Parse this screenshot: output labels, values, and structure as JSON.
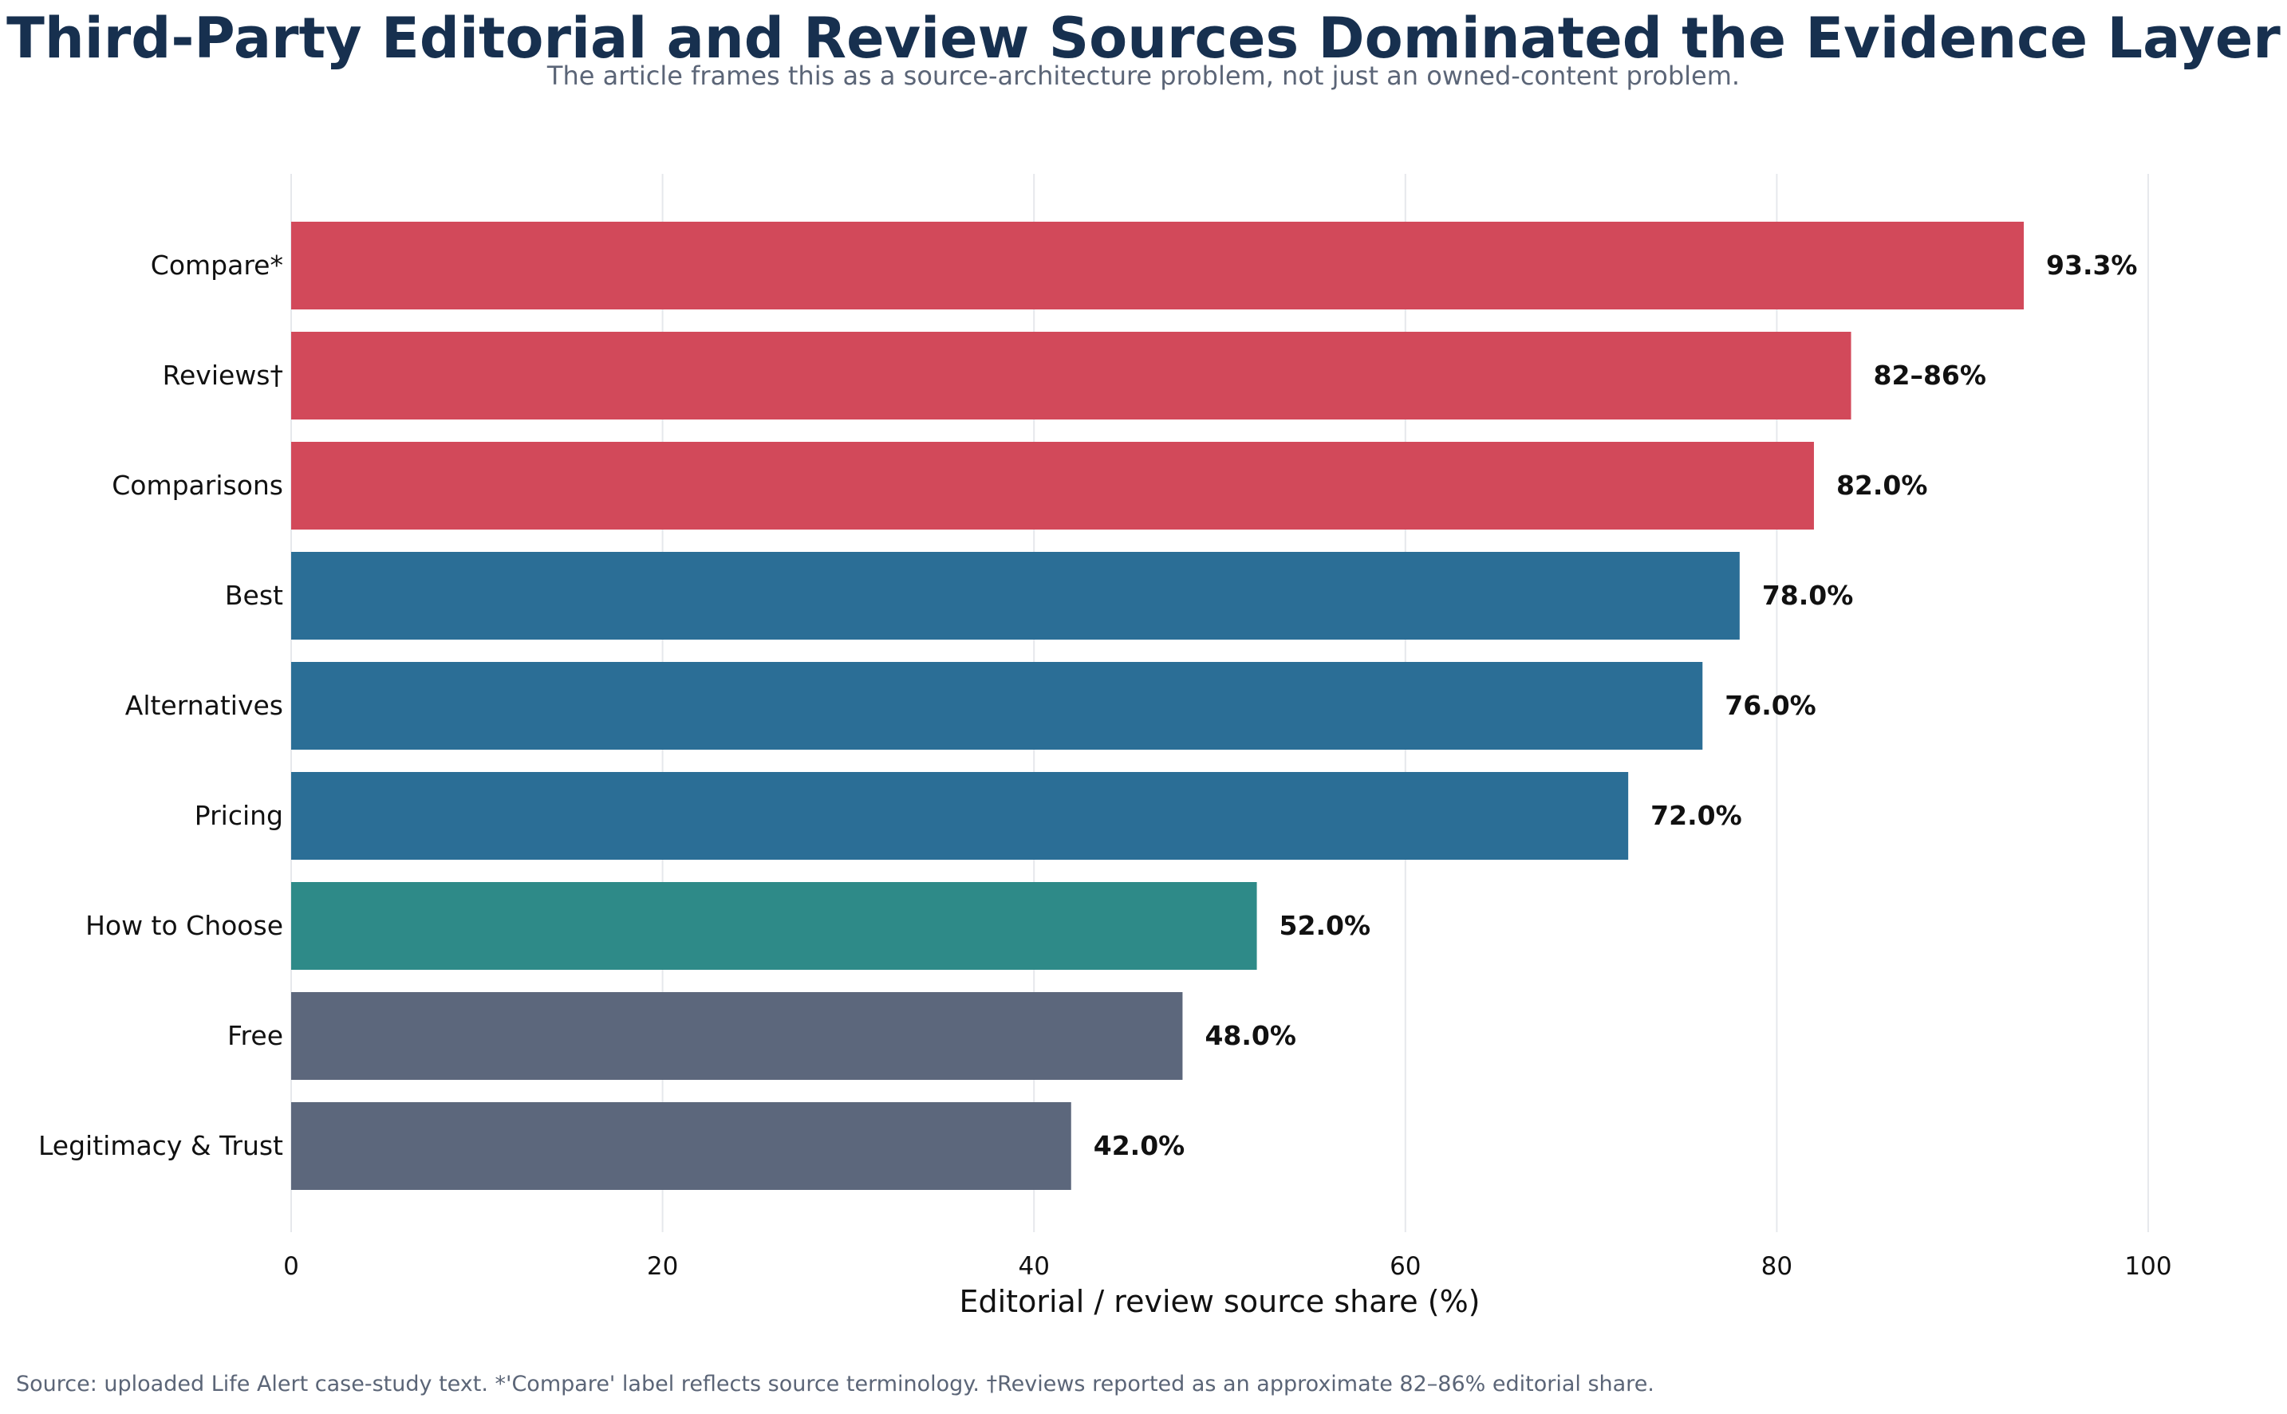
{
  "chart_data": {
    "type": "bar",
    "orientation": "horizontal",
    "title": "Third-Party Editorial and Review Sources Dominated the Evidence Layer",
    "subtitle": "The article frames this as a source-architecture problem, not just an owned-content problem.",
    "xlabel": "Editorial / review source share (%)",
    "ylabel": "",
    "xlim": [
      0,
      100
    ],
    "xticks": [
      0,
      20,
      40,
      60,
      80,
      100
    ],
    "grid": "vertical",
    "categories": [
      "Compare*",
      "Reviews†",
      "Comparisons",
      "Best",
      "Alternatives",
      "Pricing",
      "How to Choose",
      "Free",
      "Legitimacy & Trust"
    ],
    "values": [
      93.3,
      84,
      82.0,
      78.0,
      76.0,
      72.0,
      52.0,
      48.0,
      42.0
    ],
    "value_labels": [
      "93.3%",
      "82–86%",
      "82.0%",
      "78.0%",
      "76.0%",
      "72.0%",
      "52.0%",
      "48.0%",
      "42.0%"
    ],
    "colors": [
      "#d2495a",
      "#d2495a",
      "#d2495a",
      "#2b6e96",
      "#2b6e96",
      "#2b6e96",
      "#2e8a88",
      "#5c677c",
      "#5c677c"
    ],
    "footnote": "Source: uploaded Life Alert case-study text. *'Compare' label reflects source terminology. †Reviews reported as an approximate 82–86% editorial share."
  }
}
